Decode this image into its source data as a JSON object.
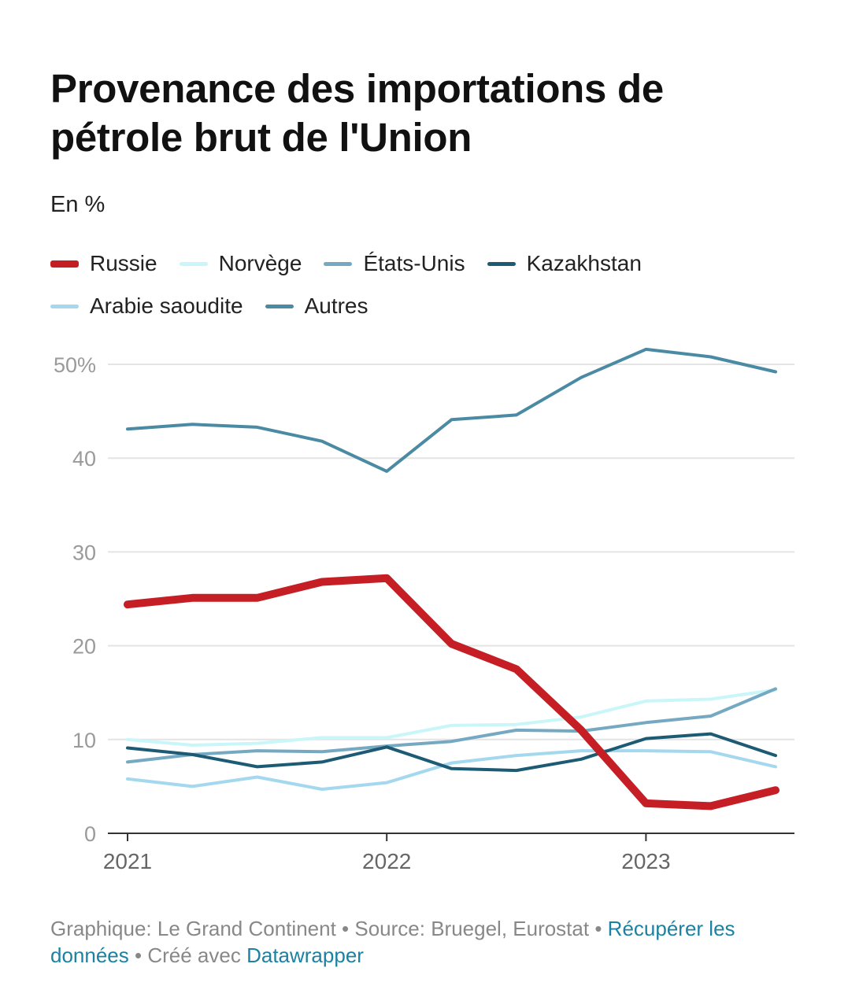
{
  "title": "Provenance des importations de pétrole brut de l'Union",
  "subtitle": "En %",
  "footer": {
    "credit": "Graphique: Le Grand Continent",
    "separator": "•",
    "source": "Source: Bruegel, Eurostat",
    "download_link": "Récupérer les données",
    "created": "Créé avec",
    "tool_link": "Datawrapper"
  },
  "chart_data": {
    "type": "line",
    "x": [
      2021.0,
      2021.25,
      2021.5,
      2021.75,
      2022.0,
      2022.25,
      2022.5,
      2022.75,
      2023.0,
      2023.25,
      2023.5
    ],
    "x_ticks": [
      2021,
      2022,
      2023
    ],
    "x_tick_labels": [
      "2021",
      "2022",
      "2023"
    ],
    "y_ticks": [
      0,
      10,
      20,
      30,
      40,
      50
    ],
    "y_tick_labels": [
      "0",
      "10",
      "20",
      "30",
      "40",
      "50%"
    ],
    "ylim": [
      0,
      50
    ],
    "grid": true,
    "legend_position": "top-left",
    "series": [
      {
        "name": "Autres",
        "color": "#4a8aa3",
        "width": 4,
        "values": [
          43.1,
          43.6,
          43.3,
          41.8,
          38.6,
          44.1,
          44.6,
          48.6,
          51.6,
          50.8,
          49.2
        ]
      },
      {
        "name": "Norvège",
        "color": "#c9f6f8",
        "width": 4,
        "values": [
          10.0,
          9.4,
          9.6,
          10.2,
          10.2,
          11.5,
          11.6,
          12.4,
          14.1,
          14.3,
          15.3
        ]
      },
      {
        "name": "États-Unis",
        "color": "#75a9c2",
        "width": 4,
        "values": [
          7.6,
          8.4,
          8.8,
          8.7,
          9.3,
          9.8,
          11.0,
          10.9,
          11.8,
          12.5,
          15.4
        ]
      },
      {
        "name": "Arabie saoudite",
        "color": "#a3d8ee",
        "width": 4,
        "values": [
          5.8,
          5.0,
          6.0,
          4.7,
          5.4,
          7.5,
          8.3,
          8.8,
          8.8,
          8.7,
          7.1
        ]
      },
      {
        "name": "Kazakhstan",
        "color": "#1c5b73",
        "width": 4,
        "values": [
          9.1,
          8.4,
          7.1,
          7.6,
          9.2,
          6.9,
          6.7,
          7.9,
          10.1,
          10.6,
          8.3
        ]
      },
      {
        "name": "Russie",
        "color": "#c51f25",
        "width": 10,
        "values": [
          24.4,
          25.1,
          25.1,
          26.8,
          27.2,
          20.2,
          17.5,
          11.0,
          3.2,
          2.9,
          4.6
        ]
      }
    ],
    "legend_order": [
      "Russie",
      "Norvège",
      "États-Unis",
      "Kazakhstan",
      "Arabie saoudite",
      "Autres"
    ]
  }
}
